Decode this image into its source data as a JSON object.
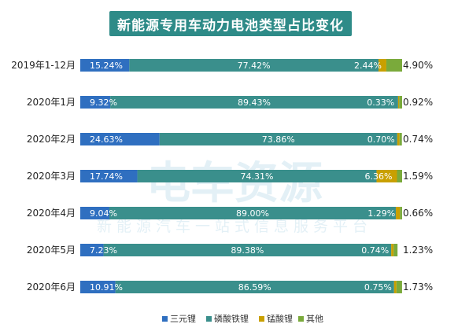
{
  "title": "新能源专用车动力电池类型占比变化",
  "watermark": {
    "main": "电车资源",
    "sub": "新能源汽车一站式信息服务平台"
  },
  "chart_data": {
    "type": "bar",
    "orientation": "horizontal",
    "stacked": true,
    "normalized": true,
    "categories": [
      "2019年1-12月",
      "2020年1月",
      "2020年2月",
      "2020年3月",
      "2020年4月",
      "2020年5月",
      "2020年6月"
    ],
    "series": [
      {
        "name": "三元锂",
        "color": "#2f6fc0",
        "values": [
          15.24,
          9.32,
          24.63,
          17.74,
          9.04,
          7.23,
          10.91
        ],
        "labels": [
          "15.24%",
          "9.32%",
          "24.63%",
          "17.74%",
          "9.04%",
          "7.23%",
          "10.91%"
        ]
      },
      {
        "name": "磷酸铁锂",
        "color": "#3a8f8c",
        "values": [
          77.42,
          89.43,
          73.86,
          74.31,
          89.0,
          89.38,
          86.59
        ],
        "labels": [
          "77.42%",
          "89.43%",
          "73.86%",
          "74.31%",
          "89.00%",
          "89.38%",
          "86.59%"
        ]
      },
      {
        "name": "锰酸锂",
        "color": "#c9a000",
        "values": [
          2.44,
          0.33,
          0.7,
          6.36,
          1.29,
          0.74,
          0.75
        ],
        "labels": [
          "2.44%",
          "0.33%",
          "0.70%",
          "6.36%",
          "1.29%",
          "0.74%",
          "0.75%"
        ]
      },
      {
        "name": "其他",
        "color": "#7aaa3b",
        "values": [
          4.9,
          0.92,
          0.74,
          1.59,
          0.66,
          1.23,
          1.73
        ],
        "labels": [
          "4.90%",
          "0.92%",
          "0.74%",
          "1.59%",
          "0.66%",
          "1.23%",
          "1.73%"
        ]
      }
    ],
    "xlim": [
      0,
      100
    ],
    "grid": false,
    "legend_position": "bottom"
  }
}
